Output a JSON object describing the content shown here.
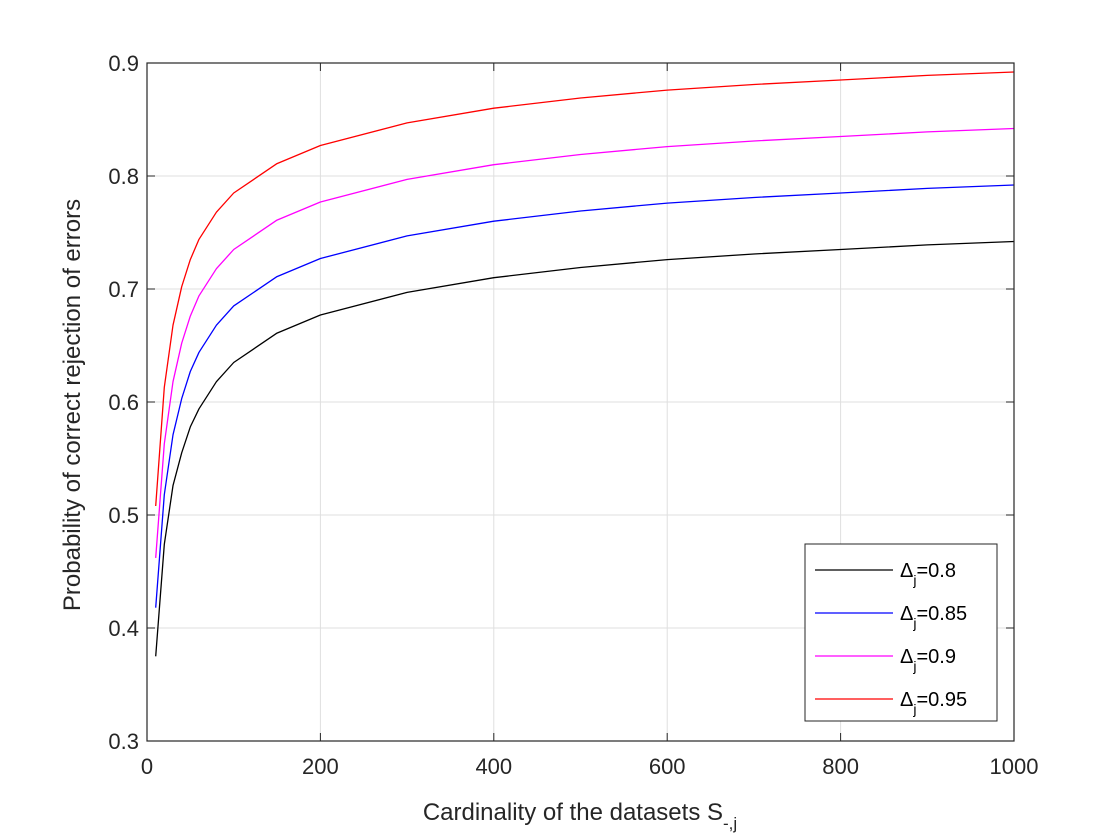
{
  "chart_data": {
    "type": "line",
    "title": "",
    "xlabel": "Cardinality of the datasets S",
    "xlabel_subscript": "-,j",
    "ylabel": "Probability of correct rejection of errors",
    "xlim": [
      0,
      1000
    ],
    "ylim": [
      0.3,
      0.9
    ],
    "xticks": [
      0,
      200,
      400,
      600,
      800,
      1000
    ],
    "xtick_labels": [
      "0",
      "200",
      "400",
      "600",
      "800",
      "1000"
    ],
    "yticks": [
      0.3,
      0.4,
      0.5,
      0.6,
      0.7,
      0.8,
      0.9
    ],
    "ytick_labels": [
      "0.3",
      "0.4",
      "0.5",
      "0.6",
      "0.7",
      "0.8",
      "0.9"
    ],
    "grid": true,
    "legend_position": "bottom-right",
    "x": [
      10,
      20,
      30,
      40,
      50,
      60,
      80,
      100,
      150,
      200,
      300,
      400,
      500,
      600,
      700,
      800,
      900,
      1000
    ],
    "series": [
      {
        "label_symbol": "Δ",
        "label_sub": "j",
        "label_value": "=0.8",
        "color": "#000000",
        "values": [
          0.375,
          0.474,
          0.526,
          0.555,
          0.578,
          0.594,
          0.618,
          0.635,
          0.661,
          0.677,
          0.697,
          0.71,
          0.719,
          0.726,
          0.731,
          0.735,
          0.739,
          0.742
        ]
      },
      {
        "label_symbol": "Δ",
        "label_sub": "j",
        "label_value": "=0.85",
        "color": "#0000ff",
        "values": [
          0.418,
          0.518,
          0.571,
          0.603,
          0.627,
          0.644,
          0.668,
          0.685,
          0.711,
          0.727,
          0.747,
          0.76,
          0.769,
          0.776,
          0.781,
          0.785,
          0.789,
          0.792
        ]
      },
      {
        "label_symbol": "Δ",
        "label_sub": "j",
        "label_value": "=0.9",
        "color": "#ff00ff",
        "values": [
          0.462,
          0.563,
          0.618,
          0.652,
          0.676,
          0.694,
          0.718,
          0.735,
          0.761,
          0.777,
          0.797,
          0.81,
          0.819,
          0.826,
          0.831,
          0.835,
          0.839,
          0.842
        ]
      },
      {
        "label_symbol": "Δ",
        "label_sub": "j",
        "label_value": "=0.95",
        "color": "#ff0000",
        "values": [
          0.508,
          0.613,
          0.668,
          0.702,
          0.726,
          0.744,
          0.768,
          0.785,
          0.811,
          0.827,
          0.847,
          0.86,
          0.869,
          0.876,
          0.881,
          0.885,
          0.889,
          0.892
        ]
      }
    ]
  }
}
